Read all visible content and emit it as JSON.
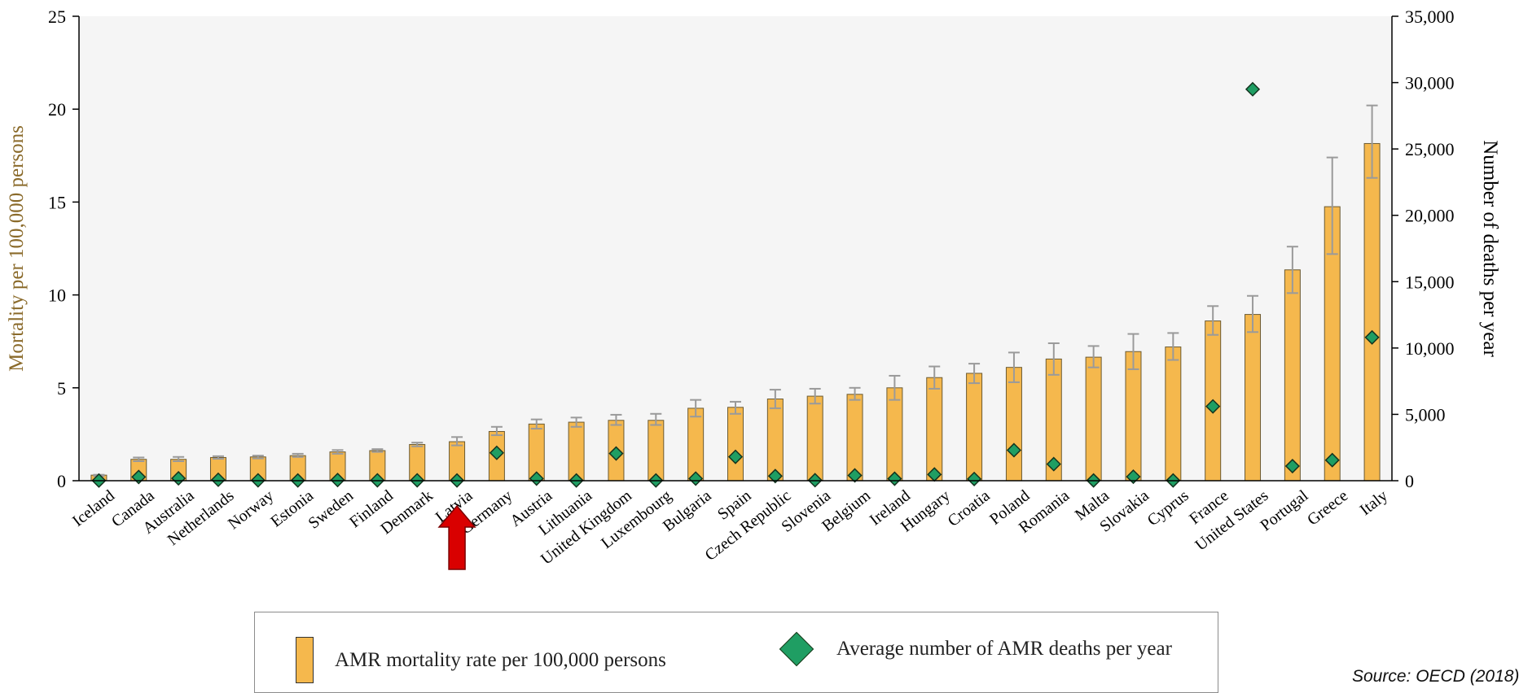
{
  "chart_data": {
    "type": "bar",
    "categories": [
      "Iceland",
      "Canada",
      "Australia",
      "Netherlands",
      "Norway",
      "Estonia",
      "Sweden",
      "Finland",
      "Denmark",
      "Latvia",
      "Germany",
      "Austria",
      "Lithuania",
      "United Kingdom",
      "Luxembourg",
      "Bulgaria",
      "Spain",
      "Czech Republic",
      "Slovenia",
      "Belgium",
      "Ireland",
      "Hungary",
      "Croatia",
      "Poland",
      "Romania",
      "Malta",
      "Slovakia",
      "Cyprus",
      "France",
      "United States",
      "Portugal",
      "Greece",
      "Italy"
    ],
    "series": [
      {
        "name": "AMR mortality rate per 100,000 persons",
        "axis": "left",
        "values": [
          0.3,
          1.15,
          1.15,
          1.25,
          1.28,
          1.35,
          1.55,
          1.62,
          1.95,
          2.1,
          2.65,
          3.05,
          3.15,
          3.25,
          3.25,
          3.9,
          3.95,
          4.4,
          4.55,
          4.65,
          5.0,
          5.55,
          5.78,
          6.1,
          6.55,
          6.65,
          6.95,
          7.2,
          8.6,
          8.95,
          11.35,
          14.75,
          18.15
        ],
        "error_low": [
          0.25,
          1.05,
          1.05,
          1.18,
          1.2,
          1.28,
          1.45,
          1.55,
          1.85,
          1.9,
          2.45,
          2.8,
          2.9,
          3.0,
          3.0,
          3.45,
          3.6,
          3.9,
          4.15,
          4.35,
          4.35,
          4.95,
          5.25,
          5.3,
          5.7,
          6.1,
          6.0,
          6.5,
          7.85,
          8.0,
          10.1,
          12.2,
          16.3
        ],
        "error_high": [
          0.32,
          1.25,
          1.28,
          1.32,
          1.35,
          1.45,
          1.65,
          1.7,
          2.05,
          2.35,
          2.9,
          3.3,
          3.4,
          3.55,
          3.6,
          4.35,
          4.25,
          4.9,
          4.95,
          5.0,
          5.65,
          6.15,
          6.3,
          6.9,
          7.4,
          7.25,
          7.9,
          7.95,
          9.4,
          9.95,
          12.6,
          17.4,
          20.2
        ]
      },
      {
        "name": "Average number of AMR deaths per year",
        "axis": "right",
        "values": [
          10,
          280,
          180,
          70,
          30,
          20,
          50,
          30,
          30,
          20,
          2100,
          160,
          20,
          2050,
          20,
          160,
          1800,
          350,
          40,
          400,
          150,
          470,
          130,
          2300,
          1250,
          20,
          300,
          20,
          5600,
          29500,
          1100,
          1550,
          10800
        ]
      }
    ],
    "ylabel": "Mortality per 100,000 persons",
    "ylabel_right": "Number of deaths per year",
    "ylim": [
      0,
      25
    ],
    "ylim_right": [
      0,
      35000
    ],
    "yticks": [
      "0",
      "5",
      "10",
      "15",
      "20",
      "25"
    ],
    "yticks_right": [
      "0",
      "5,000",
      "10,000",
      "15,000",
      "20,000",
      "25,000",
      "30,000",
      "35,000"
    ],
    "legend": "bottom",
    "grid": false
  },
  "legend": {
    "bar_label": "AMR mortality rate per 100,000 persons",
    "diamond_label": "Average number of AMR deaths per year"
  },
  "source": "Source: OECD (2018)",
  "highlight": {
    "category": "Latvia",
    "marker": "red-arrow"
  },
  "colors": {
    "bar_fill": "#f5b84d",
    "bar_edge": "#6b5a32",
    "diamond_fill": "#1f9e63",
    "diamond_edge": "#14331f",
    "error_bar": "#9a9a9a",
    "plot_bg": "#f5f5f5",
    "axis": "#000000",
    "ylabel_color": "#8a6a2a",
    "arrow": "#d90000"
  }
}
